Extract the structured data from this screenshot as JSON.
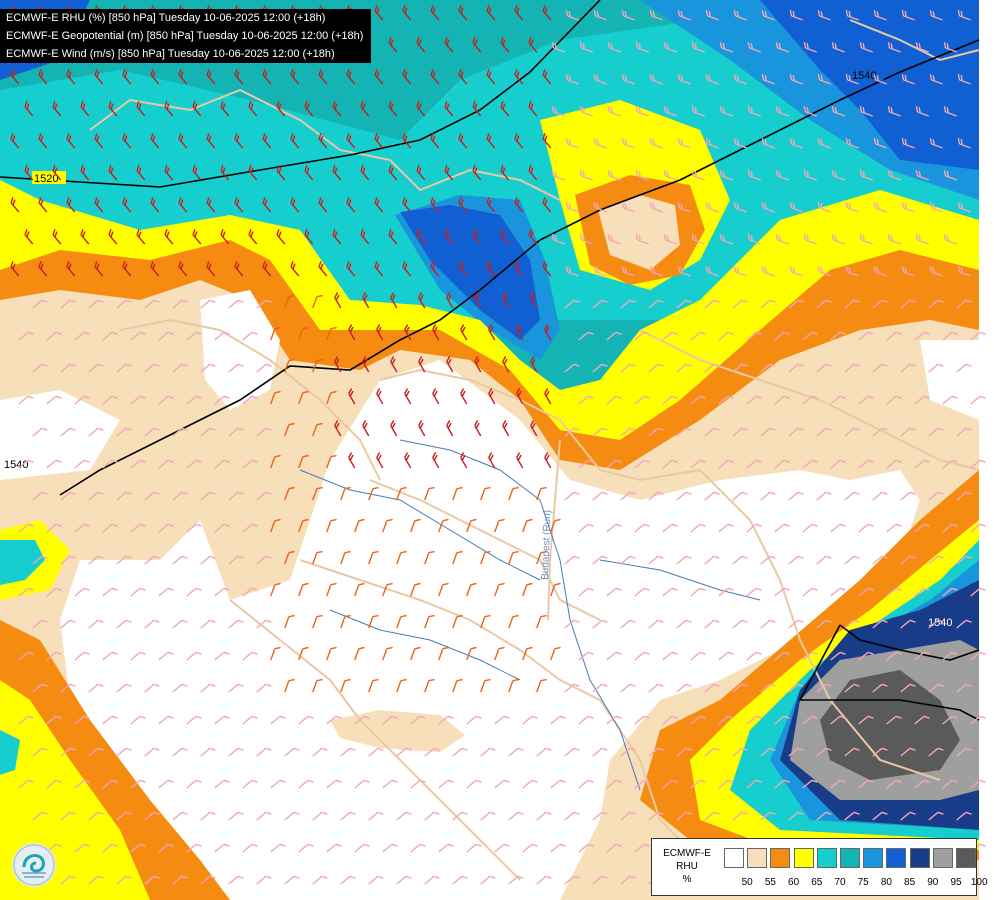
{
  "map": {
    "titles": [
      "ECMWF-E RHU (%) [850 hPa] Tuesday 10-06-2025 12:00 (+18h)",
      "ECMWF-E Geopotential (m) [850 hPa] Tuesday 10-06-2025 12:00 (+18h)",
      "ECMWF-E Wind (m/s) [850 hPa] Tuesday 10-06-2025 12:00 (+18h)"
    ],
    "contour_labels": [
      "1520",
      "1540",
      "1540",
      "1540"
    ],
    "place_label": "Budapest (Run)",
    "colors": {
      "r50": "#f7dfb9",
      "r55": "#f68b12",
      "r60": "#ffff00",
      "r65": "#17cece",
      "r70": "#14b4b4",
      "r75": "#1895dc",
      "r80": "#1060d4",
      "r85": "#183c88",
      "r90": "#9f9f9f",
      "r95": "#5a5a5a",
      "border": "#e9c9a3",
      "river": "#4a78b8",
      "contour": "#000000"
    }
  },
  "legend": {
    "label_lines": [
      "ECMWF-E",
      "RHU",
      "%"
    ],
    "swatches": [
      {
        "color": "#ffffff"
      },
      {
        "color": "#f7dfb9"
      },
      {
        "color": "#f68b12"
      },
      {
        "color": "#ffff00"
      },
      {
        "color": "#17cece"
      },
      {
        "color": "#14b4b4"
      },
      {
        "color": "#1895dc"
      },
      {
        "color": "#1060d4"
      },
      {
        "color": "#183c88"
      },
      {
        "color": "#9f9f9f"
      },
      {
        "color": "#5a5a5a"
      }
    ],
    "ticks": [
      "50",
      "55",
      "60",
      "65",
      "70",
      "75",
      "80",
      "85",
      "90",
      "95",
      "100"
    ]
  }
}
